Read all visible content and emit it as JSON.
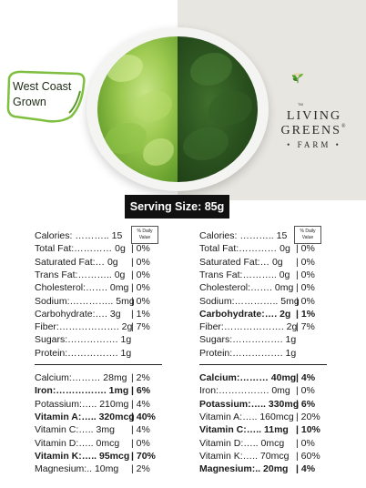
{
  "badge": {
    "line1": "West Coast",
    "line2": "Grown"
  },
  "logo": {
    "word1": "LIVING",
    "word2": "GREENS",
    "reg": "®",
    "word3": "FARM",
    "tm": "TM"
  },
  "serving": "Serving Size: 85g",
  "dv_header": {
    "line1": "% Daily",
    "line2": "Value"
  },
  "left_panel": {
    "rows": [
      {
        "label": "Calories: ……….. 15",
        "pct": "",
        "bold": false
      },
      {
        "label": "Total Fat:………… 0g",
        "pct": "|  0%",
        "bold": false
      },
      {
        "label": "Saturated Fat:… 0g",
        "pct": "|  0%",
        "bold": false
      },
      {
        "label": "Trans Fat:……….. 0g",
        "pct": "|  0%",
        "bold": false
      },
      {
        "label": "Cholesterol:……. 0mg",
        "pct": "|  0%",
        "bold": false
      },
      {
        "label": "Sodium:………….. 5mg",
        "pct": "|  0%",
        "bold": false
      },
      {
        "label": "Carbohydrate:…. 3g",
        "pct": "|  1%",
        "bold": false
      },
      {
        "label": "Fiber:………………. 2g",
        "pct": "|  7%",
        "bold": false
      },
      {
        "label": "Sugars:……………. 1g",
        "pct": "",
        "bold": false
      },
      {
        "label": "Protein:……………. 1g",
        "pct": "",
        "bold": false
      }
    ],
    "minerals": [
      {
        "label": "Calcium:……… 28mg",
        "pct": "|  2%",
        "bold": false
      },
      {
        "label": "Iron:……………. 1mg",
        "pct": "|  6%",
        "bold": true
      },
      {
        "label": "Potassium:….. 210mg",
        "pct": "|  4%",
        "bold": false
      },
      {
        "label": "Vitamin A:….. 320mcg",
        "pct": "|  40%",
        "bold": true
      },
      {
        "label": "Vitamin C:….. 3mg",
        "pct": "|  4%",
        "bold": false
      },
      {
        "label": "Vitamin D:….. 0mcg",
        "pct": "|  0%",
        "bold": false
      },
      {
        "label": "Vitamin K:….. 95mcg",
        "pct": "|  70%",
        "bold": true
      },
      {
        "label": "Magnesium:.. 10mg",
        "pct": "|  2%",
        "bold": false
      }
    ]
  },
  "right_panel": {
    "rows": [
      {
        "label": "Calories: ……….. 15",
        "pct": "",
        "bold": false
      },
      {
        "label": "Total Fat:………… 0g",
        "pct": "|  0%",
        "bold": false
      },
      {
        "label": "Saturated Fat:… 0g",
        "pct": "|  0%",
        "bold": false
      },
      {
        "label": "Trans Fat:……….. 0g",
        "pct": "|  0%",
        "bold": false
      },
      {
        "label": "Cholesterol:……. 0mg",
        "pct": "|  0%",
        "bold": false
      },
      {
        "label": "Sodium:………….. 5mg",
        "pct": "|  0%",
        "bold": false
      },
      {
        "label": "Carbohydrate:…. 2g",
        "pct": "|  1%",
        "bold": true
      },
      {
        "label": "Fiber:………………. 2g",
        "pct": "|  7%",
        "bold": false
      },
      {
        "label": "Sugars:……………. 1g",
        "pct": "",
        "bold": false
      },
      {
        "label": "Protein:……………. 1g",
        "pct": "",
        "bold": false
      }
    ],
    "minerals": [
      {
        "label": "Calcium:……… 40mg",
        "pct": "|  4%",
        "bold": true
      },
      {
        "label": "Iron:……………. 0mg",
        "pct": "|  0%",
        "bold": false
      },
      {
        "label": "Potassium:….. 330mg",
        "pct": "|  6%",
        "bold": true
      },
      {
        "label": "Vitamin A:….. 160mcg",
        "pct": "|  20%",
        "bold": false
      },
      {
        "label": "Vitamin C:….. 11mg",
        "pct": "|  10%",
        "bold": true
      },
      {
        "label": "Vitamin D:….. 0mcg",
        "pct": "|  0%",
        "bold": false
      },
      {
        "label": "Vitamin K:….. 70mcg",
        "pct": "|  60%",
        "bold": false
      },
      {
        "label": "Magnesium:.. 20mg",
        "pct": "|  4%",
        "bold": true
      }
    ]
  },
  "colors": {
    "brand_green": "#4f9a2b",
    "divider": "#222222",
    "right_bg": "#e8e6e0"
  }
}
